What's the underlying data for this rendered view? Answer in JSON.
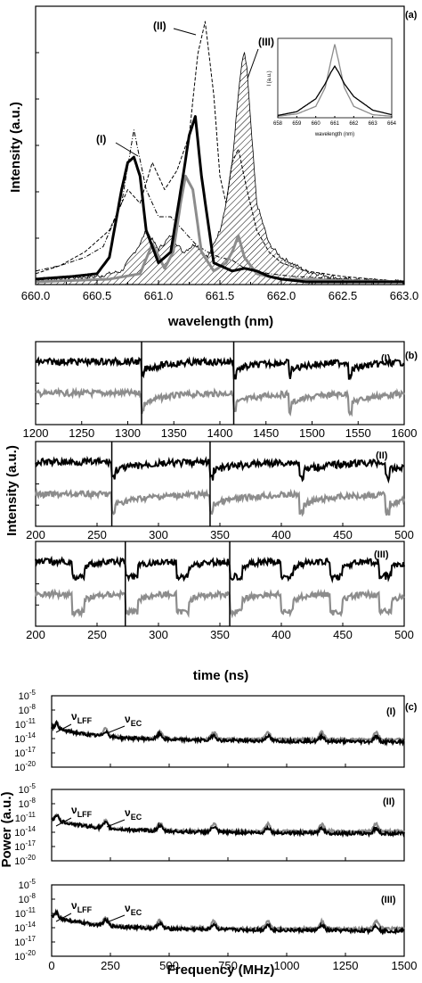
{
  "chart_data": [
    {
      "type": "line",
      "panel": "(a)",
      "xlabel": "wavelength (nm)",
      "ylabel": "Intensity (a.u.)",
      "xlim": [
        660.0,
        663.0
      ],
      "xticks": [
        "660.0",
        "660.5",
        "661.0",
        "661.5",
        "662.0",
        "662.5",
        "663.0"
      ],
      "annotations": [
        "(I)",
        "(II)",
        "(III)"
      ],
      "series": [
        {
          "style": "dash-dot-black",
          "x": [
            660.0,
            660.2,
            660.4,
            660.55,
            660.7,
            660.8,
            660.9,
            661.0,
            661.1,
            661.2,
            661.3,
            661.4,
            661.5,
            661.6,
            661.7,
            661.9,
            662.1,
            662.5,
            663.0
          ],
          "y": [
            0.05,
            0.07,
            0.1,
            0.14,
            0.3,
            0.57,
            0.35,
            0.25,
            0.25,
            0.2,
            0.15,
            0.12,
            0.1,
            0.09,
            0.06,
            0.04,
            0.03,
            0.02,
            0.01
          ]
        },
        {
          "style": "dashed-black",
          "x": [
            660.0,
            660.2,
            660.4,
            660.6,
            660.75,
            660.85,
            660.95,
            661.05,
            661.15,
            661.25,
            661.32,
            661.38,
            661.45,
            661.5,
            661.55,
            661.6,
            661.65,
            661.72,
            661.8,
            661.9,
            662.0,
            662.2,
            662.5,
            663.0
          ],
          "y": [
            0.04,
            0.07,
            0.12,
            0.2,
            0.35,
            0.3,
            0.45,
            0.35,
            0.42,
            0.55,
            0.85,
            0.97,
            0.7,
            0.4,
            0.3,
            0.45,
            0.5,
            0.35,
            0.2,
            0.12,
            0.08,
            0.05,
            0.03,
            0.01
          ]
        },
        {
          "style": "thick-black",
          "x": [
            660.0,
            660.3,
            660.5,
            660.6,
            660.7,
            660.75,
            660.8,
            660.85,
            660.9,
            661.0,
            661.1,
            661.2,
            661.25,
            661.3,
            661.35,
            661.45,
            661.6,
            661.7,
            661.8,
            661.9,
            662.0,
            662.2,
            662.5,
            663.0
          ],
          "y": [
            0.02,
            0.03,
            0.04,
            0.1,
            0.35,
            0.45,
            0.47,
            0.4,
            0.2,
            0.08,
            0.12,
            0.4,
            0.55,
            0.62,
            0.4,
            0.08,
            0.05,
            0.06,
            0.05,
            0.03,
            0.02,
            0.01,
            0.01,
            0.01
          ]
        },
        {
          "style": "thick-gray",
          "x": [
            660.0,
            660.6,
            660.85,
            660.95,
            661.05,
            661.12,
            661.18,
            661.22,
            661.28,
            661.35,
            661.45,
            661.55,
            661.6,
            661.65,
            661.7,
            661.8,
            662.0,
            663.0
          ],
          "y": [
            0.01,
            0.02,
            0.04,
            0.15,
            0.06,
            0.12,
            0.3,
            0.4,
            0.35,
            0.12,
            0.05,
            0.08,
            0.12,
            0.18,
            0.1,
            0.04,
            0.02,
            0.01
          ]
        },
        {
          "style": "hatched-fill",
          "x": [
            660.0,
            660.5,
            660.7,
            660.85,
            660.9,
            661.0,
            661.1,
            661.2,
            661.3,
            661.4,
            661.5,
            661.55,
            661.6,
            661.65,
            661.68,
            661.7,
            661.72,
            661.75,
            661.8,
            661.9,
            662.0,
            662.2,
            662.5,
            663.0
          ],
          "y": [
            0.02,
            0.03,
            0.05,
            0.15,
            0.2,
            0.13,
            0.18,
            0.12,
            0.15,
            0.1,
            0.2,
            0.3,
            0.45,
            0.7,
            0.82,
            0.85,
            0.8,
            0.6,
            0.3,
            0.15,
            0.1,
            0.05,
            0.02,
            0.01
          ]
        }
      ],
      "inset": {
        "xlabel": "wavelength (nm)",
        "ylabel": "I (a.u.)",
        "xticks": [
          "658",
          "659",
          "660",
          "661",
          "662",
          "663",
          "664"
        ],
        "series": [
          {
            "style": "gray",
            "x": [
              658,
              659,
              660,
              660.5,
              660.8,
              661,
              661.2,
              661.5,
              662,
              663,
              664
            ],
            "y": [
              0.02,
              0.05,
              0.15,
              0.4,
              0.75,
              0.97,
              0.75,
              0.4,
              0.15,
              0.04,
              0.02
            ]
          },
          {
            "style": "black",
            "x": [
              658,
              659,
              660,
              660.5,
              660.8,
              661,
              661.2,
              661.5,
              662,
              663,
              664
            ],
            "y": [
              0.03,
              0.08,
              0.25,
              0.45,
              0.6,
              0.68,
              0.6,
              0.45,
              0.28,
              0.1,
              0.04
            ]
          }
        ]
      }
    },
    {
      "type": "line",
      "panel": "(b)",
      "xlabel": "time (ns)",
      "ylabel": "Intensity (a.u.)",
      "subplots": [
        {
          "label": "(I)",
          "xlim": [
            1200,
            1600
          ],
          "xticks": [
            "1200",
            "1250",
            "1300",
            "1350",
            "1400",
            "1450",
            "1500",
            "1550",
            "1600"
          ],
          "dropout_times": [
            1315,
            1415,
            1475,
            1540
          ],
          "vlines": [
            1315,
            1415
          ]
        },
        {
          "label": "(II)",
          "xlim": [
            200,
            500
          ],
          "xticks": [
            "200",
            "250",
            "300",
            "350",
            "400",
            "450",
            "500"
          ],
          "dropout_times": [
            262,
            342,
            415,
            485
          ],
          "vlines": [
            262,
            342
          ]
        },
        {
          "label": "(III)",
          "xlim": [
            200,
            500
          ],
          "xticks": [
            "200",
            "250",
            "300",
            "350",
            "400",
            "450",
            "500"
          ],
          "dropout_times": [
            230,
            273,
            315,
            358,
            400,
            440,
            480
          ],
          "vlines": [
            273,
            358
          ]
        }
      ]
    },
    {
      "type": "line",
      "panel": "(c)",
      "xlabel": "Frequency (MHz)",
      "ylabel": "Power (a.u.)",
      "y_scale": "log",
      "xlim": [
        0,
        1500
      ],
      "xticks": [
        "0",
        "250",
        "500",
        "750",
        "1000",
        "1250",
        "1500"
      ],
      "yticks": [
        "10^-20",
        "10^-17",
        "10^-14",
        "10^-11",
        "10^-8",
        "10^-5"
      ],
      "annotation_a": "ν",
      "annotation_a_sub": "LFF",
      "annotation_b": "ν",
      "annotation_b_sub": "EC",
      "subplots": [
        {
          "label": "(I)",
          "ec_peaks_mhz": [
            230,
            460,
            690,
            920,
            1150,
            1380
          ]
        },
        {
          "label": "(II)",
          "ec_peaks_mhz": [
            230,
            460,
            690,
            920,
            1150,
            1380
          ]
        },
        {
          "label": "(III)",
          "ec_peaks_mhz": [
            230,
            460,
            690,
            920,
            1150,
            1380
          ]
        }
      ]
    }
  ]
}
